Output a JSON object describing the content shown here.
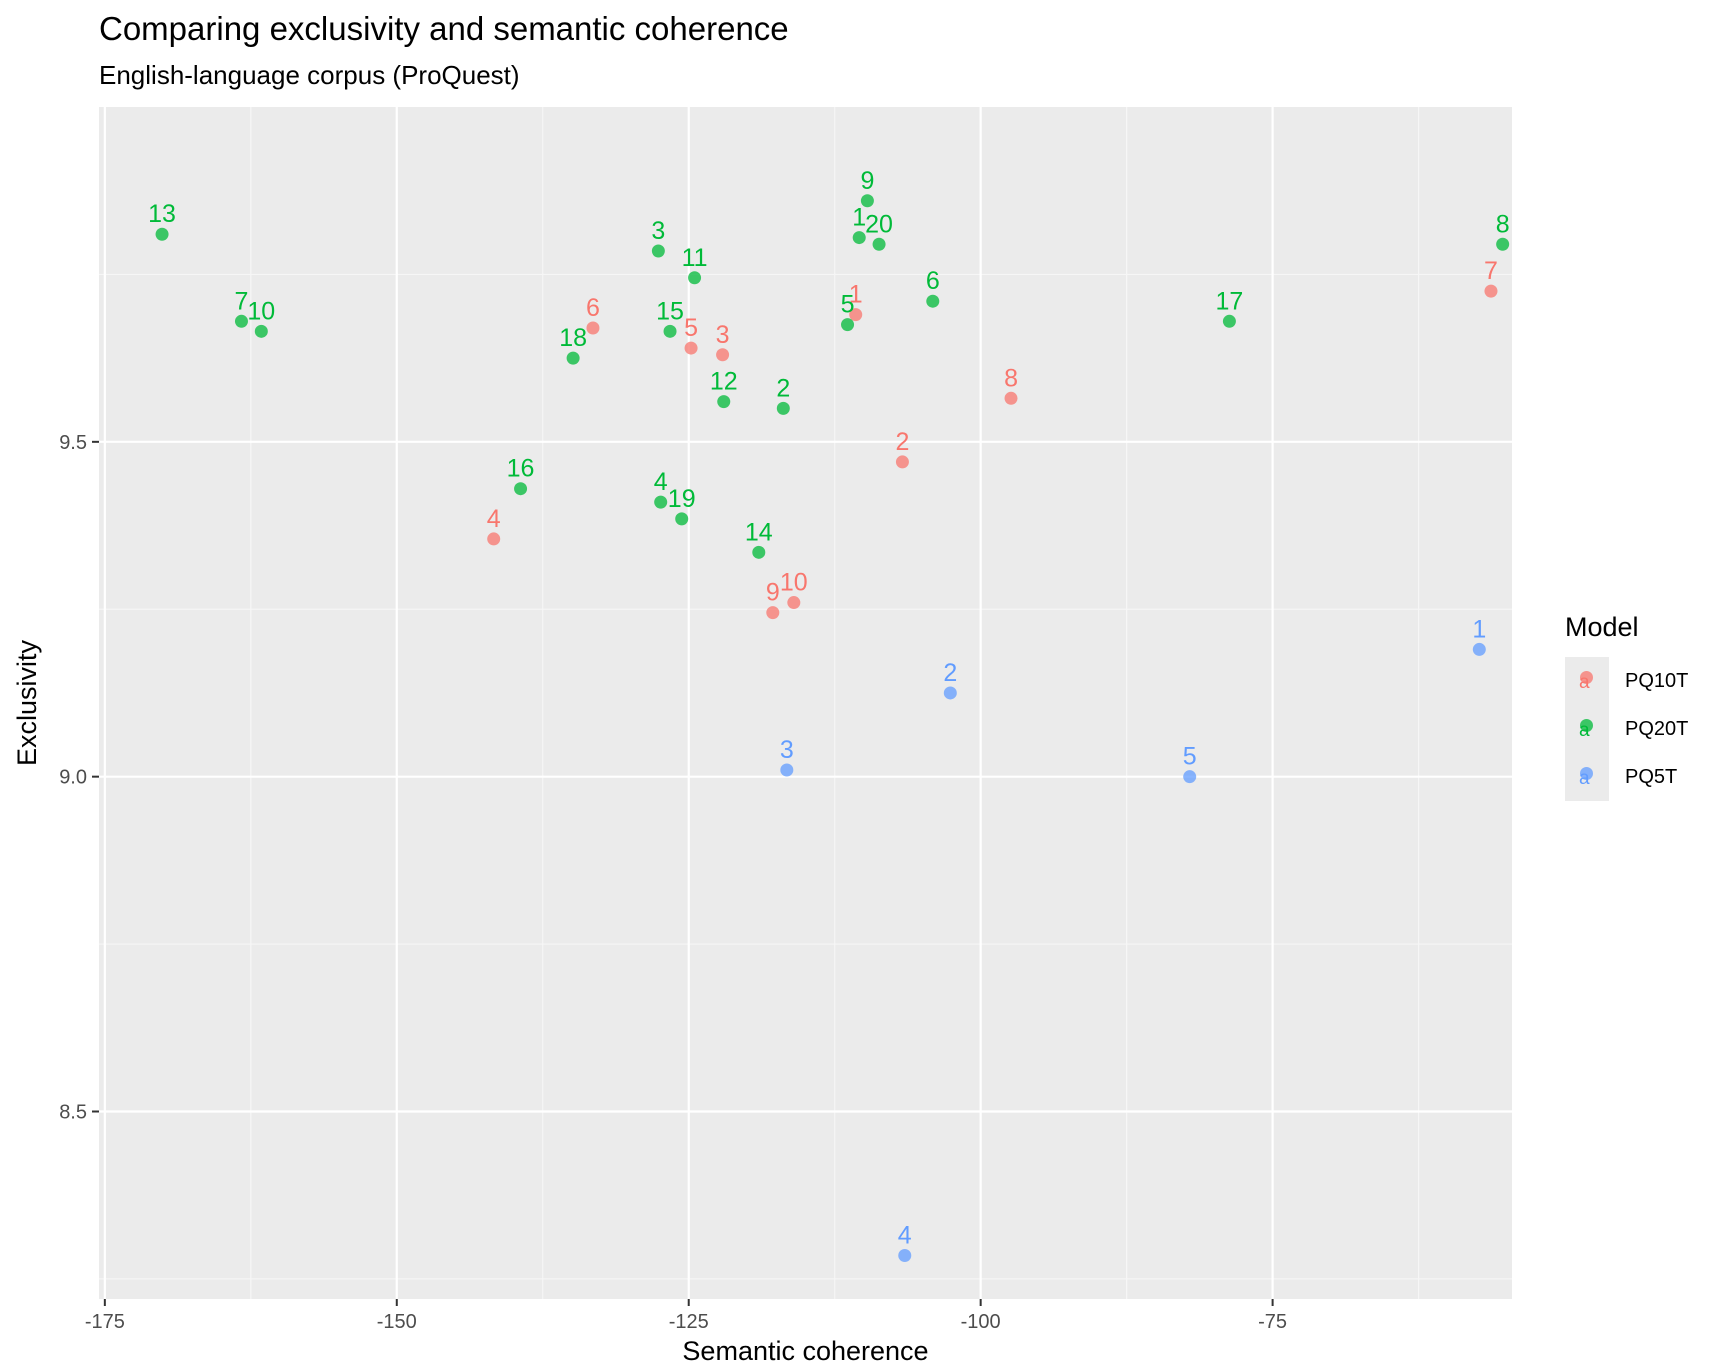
{
  "chart_data": {
    "type": "scatter",
    "title": "Comparing exclusivity and semantic coherence",
    "subtitle": "English-language corpus (ProQuest)",
    "xlabel": "Semantic coherence",
    "ylabel": "Exclusivity",
    "xlim": [
      -175.5,
      -54.5
    ],
    "ylim": [
      8.22,
      10.0
    ],
    "x_ticks": [
      -175,
      -150,
      -125,
      -100,
      -75
    ],
    "x_tick_labels": [
      "-175",
      "-150",
      "-125",
      "-100",
      "-75"
    ],
    "y_ticks": [
      8.5,
      9.0,
      9.5
    ],
    "y_tick_labels": [
      "8.5",
      "9.0",
      "9.5"
    ],
    "grid": true,
    "legend_title": "Model",
    "legend_position": "right",
    "series": [
      {
        "name": "PQ10T",
        "color": "#F8766D",
        "points": [
          {
            "label": "1",
            "x": -110.7,
            "y": 9.69
          },
          {
            "label": "2",
            "x": -106.7,
            "y": 9.47
          },
          {
            "label": "3",
            "x": -122.1,
            "y": 9.63
          },
          {
            "label": "4",
            "x": -141.7,
            "y": 9.355
          },
          {
            "label": "5",
            "x": -124.8,
            "y": 9.64
          },
          {
            "label": "6",
            "x": -133.2,
            "y": 9.67
          },
          {
            "label": "7",
            "x": -56.3,
            "y": 9.725
          },
          {
            "label": "8",
            "x": -97.4,
            "y": 9.565
          },
          {
            "label": "9",
            "x": -117.8,
            "y": 9.245
          },
          {
            "label": "10",
            "x": -116.0,
            "y": 9.26
          }
        ]
      },
      {
        "name": "PQ20T",
        "color": "#00BA38",
        "points": [
          {
            "label": "1",
            "x": -110.4,
            "y": 9.805
          },
          {
            "label": "2",
            "x": -116.9,
            "y": 9.55
          },
          {
            "label": "3",
            "x": -127.6,
            "y": 9.785
          },
          {
            "label": "4",
            "x": -127.4,
            "y": 9.41
          },
          {
            "label": "5",
            "x": -111.4,
            "y": 9.675
          },
          {
            "label": "6",
            "x": -104.1,
            "y": 9.71
          },
          {
            "label": "7",
            "x": -163.3,
            "y": 9.68
          },
          {
            "label": "8",
            "x": -55.3,
            "y": 9.795
          },
          {
            "label": "9",
            "x": -109.7,
            "y": 9.86
          },
          {
            "label": "10",
            "x": -161.6,
            "y": 9.665
          },
          {
            "label": "11",
            "x": -124.5,
            "y": 9.745
          },
          {
            "label": "12",
            "x": -122.0,
            "y": 9.56
          },
          {
            "label": "13",
            "x": -170.1,
            "y": 9.81
          },
          {
            "label": "14",
            "x": -119.0,
            "y": 9.335
          },
          {
            "label": "15",
            "x": -126.6,
            "y": 9.665
          },
          {
            "label": "16",
            "x": -139.4,
            "y": 9.43
          },
          {
            "label": "17",
            "x": -78.7,
            "y": 9.68
          },
          {
            "label": "18",
            "x": -134.9,
            "y": 9.625
          },
          {
            "label": "19",
            "x": -125.6,
            "y": 9.385
          },
          {
            "label": "20",
            "x": -108.7,
            "y": 9.795
          }
        ]
      },
      {
        "name": "PQ5T",
        "color": "#619CFF",
        "points": [
          {
            "label": "1",
            "x": -57.3,
            "y": 9.19
          },
          {
            "label": "2",
            "x": -102.6,
            "y": 9.125
          },
          {
            "label": "3",
            "x": -116.6,
            "y": 9.01
          },
          {
            "label": "4",
            "x": -106.5,
            "y": 8.285
          },
          {
            "label": "5",
            "x": -82.1,
            "y": 9.0
          }
        ]
      }
    ]
  }
}
